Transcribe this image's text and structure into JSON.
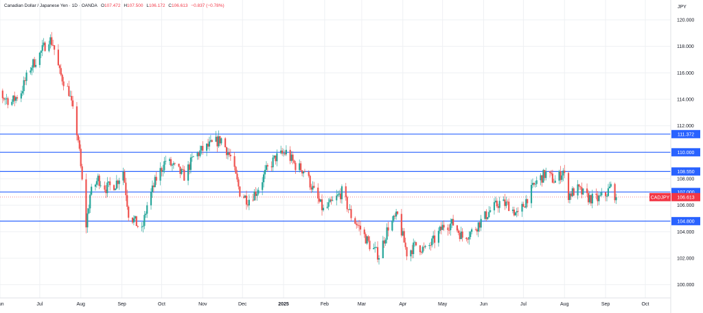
{
  "header": {
    "title": "Canadian Dollar / Japanese Yen · 1D · OANDA",
    "o_label": "O",
    "o_value": "107.472",
    "h_label": "H",
    "h_value": "107.500",
    "l_label": "L",
    "l_value": "106.172",
    "c_label": "C",
    "c_value": "106.613",
    "change": "−0.837 (−0.78%)"
  },
  "currency_label": "JPY",
  "colors": {
    "up": "#26a69a",
    "down": "#ef5350",
    "level_line": "#2962ff",
    "price_tag": "#f23645",
    "grid": "#eef0f3"
  },
  "chart_data": {
    "type": "candlestick",
    "symbol": "CADJPY",
    "current_price": "106.613",
    "ylim": [
      99.0,
      121.5
    ],
    "yticks": [
      "100.000",
      "102.000",
      "104.000",
      "106.000",
      "108.000",
      "110.000",
      "112.000",
      "114.000",
      "116.000",
      "118.000",
      "120.000"
    ],
    "xticks": [
      {
        "label": "Jun",
        "date": "2024-06-01"
      },
      {
        "label": "Jul",
        "date": "2024-07-01"
      },
      {
        "label": "Aug",
        "date": "2024-08-01"
      },
      {
        "label": "Sep",
        "date": "2024-09-01"
      },
      {
        "label": "Oct",
        "date": "2024-10-01"
      },
      {
        "label": "Nov",
        "date": "2024-11-01"
      },
      {
        "label": "Dec",
        "date": "2024-12-01"
      },
      {
        "label": "2025",
        "date": "2025-01-01",
        "bold": true
      },
      {
        "label": "Feb",
        "date": "2025-02-01"
      },
      {
        "label": "Mar",
        "date": "2025-03-01"
      },
      {
        "label": "Apr",
        "date": "2025-04-01"
      },
      {
        "label": "May",
        "date": "2025-05-01"
      },
      {
        "label": "Jun",
        "date": "2025-06-01"
      },
      {
        "label": "Jul",
        "date": "2025-07-01"
      },
      {
        "label": "Aug",
        "date": "2025-08-01"
      },
      {
        "label": "Sep",
        "date": "2025-09-01"
      },
      {
        "label": "Oct",
        "date": "2025-10-01"
      }
    ],
    "horizontal_levels": [
      {
        "value": 111.372,
        "label": "111.372"
      },
      {
        "value": 110.0,
        "label": "110.000"
      },
      {
        "value": 108.55,
        "label": "108.550"
      },
      {
        "value": 107.0,
        "label": "107.000"
      },
      {
        "value": 104.8,
        "label": "104.800"
      }
    ],
    "path": [
      [
        "2024-05-20",
        114.4
      ],
      [
        "2024-05-27",
        115.1
      ],
      [
        "2024-06-03",
        114.2
      ],
      [
        "2024-06-10",
        113.8
      ],
      [
        "2024-06-17",
        114.6
      ],
      [
        "2024-06-24",
        116.4
      ],
      [
        "2024-07-01",
        117.4
      ],
      [
        "2024-07-08",
        118.6
      ],
      [
        "2024-07-11",
        118.2
      ],
      [
        "2024-07-16",
        116.0
      ],
      [
        "2024-07-23",
        114.6
      ],
      [
        "2024-07-30",
        111.0
      ],
      [
        "2024-08-05",
        104.5
      ],
      [
        "2024-08-08",
        106.8
      ],
      [
        "2024-08-14",
        108.0
      ],
      [
        "2024-08-20",
        107.3
      ],
      [
        "2024-08-27",
        107.6
      ],
      [
        "2024-09-02",
        108.6
      ],
      [
        "2024-09-06",
        105.4
      ],
      [
        "2024-09-12",
        104.6
      ],
      [
        "2024-09-16",
        104.0
      ],
      [
        "2024-09-20",
        106.0
      ],
      [
        "2024-09-27",
        108.0
      ],
      [
        "2024-10-04",
        109.4
      ],
      [
        "2024-10-11",
        108.8
      ],
      [
        "2024-10-18",
        108.2
      ],
      [
        "2024-10-25",
        109.6
      ],
      [
        "2024-11-01",
        110.2
      ],
      [
        "2024-11-08",
        110.6
      ],
      [
        "2024-11-15",
        111.0
      ],
      [
        "2024-11-22",
        109.6
      ],
      [
        "2024-11-29",
        107.0
      ],
      [
        "2024-12-05",
        106.4
      ],
      [
        "2024-12-12",
        107.1
      ],
      [
        "2024-12-19",
        108.6
      ],
      [
        "2024-12-26",
        109.6
      ],
      [
        "2025-01-03",
        110.0
      ],
      [
        "2025-01-10",
        109.0
      ],
      [
        "2025-01-17",
        108.6
      ],
      [
        "2025-01-24",
        107.0
      ],
      [
        "2025-01-31",
        105.6
      ],
      [
        "2025-02-07",
        106.2
      ],
      [
        "2025-02-14",
        107.0
      ],
      [
        "2025-02-21",
        105.2
      ],
      [
        "2025-02-28",
        104.2
      ],
      [
        "2025-03-07",
        103.0
      ],
      [
        "2025-03-14",
        102.2
      ],
      [
        "2025-03-21",
        104.4
      ],
      [
        "2025-03-28",
        105.2
      ],
      [
        "2025-04-04",
        102.4
      ],
      [
        "2025-04-11",
        103.0
      ],
      [
        "2025-04-18",
        102.6
      ],
      [
        "2025-04-25",
        103.4
      ],
      [
        "2025-05-02",
        104.5
      ],
      [
        "2025-05-09",
        104.6
      ],
      [
        "2025-05-16",
        103.6
      ],
      [
        "2025-05-23",
        104.0
      ],
      [
        "2025-05-30",
        104.8
      ],
      [
        "2025-06-06",
        105.6
      ],
      [
        "2025-06-13",
        106.2
      ],
      [
        "2025-06-20",
        106.0
      ],
      [
        "2025-06-27",
        105.2
      ],
      [
        "2025-07-04",
        106.6
      ],
      [
        "2025-07-11",
        107.8
      ],
      [
        "2025-07-18",
        108.4
      ],
      [
        "2025-07-25",
        107.8
      ],
      [
        "2025-07-31",
        108.6
      ],
      [
        "2025-08-04",
        106.8
      ],
      [
        "2025-08-11",
        107.2
      ],
      [
        "2025-08-18",
        106.6
      ],
      [
        "2025-08-25",
        106.4
      ],
      [
        "2025-09-01",
        106.8
      ],
      [
        "2025-09-05",
        107.4
      ],
      [
        "2025-09-09",
        106.613
      ]
    ]
  }
}
